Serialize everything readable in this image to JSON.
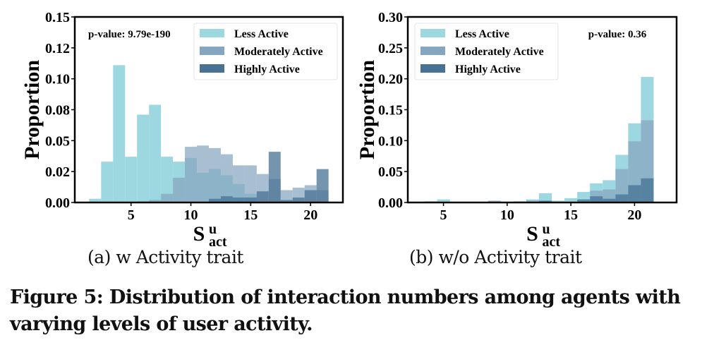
{
  "colors": {
    "less": "#9dd7e0",
    "moderate": "#86a5bf",
    "highly": "#477293"
  },
  "caption": {
    "sub_a": "(a) w Activity trait",
    "sub_b": "(b) w/o Activity trait",
    "figure": "Figure 5: Distribution of interaction numbers among agents with varying levels of user activity."
  },
  "chart_data": [
    {
      "type": "bar",
      "subtype": "overlaid-histogram",
      "id": "a",
      "title": "(a) w Activity trait",
      "xlabel": "S",
      "xlabel_sup": "u",
      "xlabel_sub": "act",
      "ylabel": "Proportion",
      "xlim": [
        0.3,
        22.7
      ],
      "ylim": [
        0,
        0.15
      ],
      "xticks": [
        5,
        10,
        15,
        20
      ],
      "yticks": [
        0,
        0.025,
        0.05,
        0.075,
        0.1,
        0.125,
        0.15
      ],
      "ytick_labels": [
        "0.00",
        "0.02",
        "0.05",
        "0.08",
        "0.10",
        "0.12",
        "0.15"
      ],
      "annotation": "p-value: 9.79e-190",
      "annotation_position": "top-left",
      "legend_position": "top-right",
      "grid": false,
      "bins": [
        2,
        3,
        4,
        5,
        6,
        7,
        8,
        9,
        10,
        11,
        12,
        13,
        14,
        15,
        16,
        17,
        18,
        19,
        20,
        21
      ],
      "series": [
        {
          "name": "Less Active",
          "key": "less",
          "values": [
            0.003,
            0.033,
            0.111,
            0.037,
            0.071,
            0.079,
            0.037,
            0.033,
            0.036,
            0.024,
            0.027,
            0.022,
            0.015,
            0.007,
            0,
            0,
            0,
            0,
            0,
            0
          ]
        },
        {
          "name": "Moderately Active",
          "key": "moderate",
          "values": [
            0,
            0,
            0,
            0,
            0.001,
            0.002,
            0.007,
            0.02,
            0.045,
            0.046,
            0.044,
            0.039,
            0.03,
            0.03,
            0.023,
            0.019,
            0.01,
            0.012,
            0.014,
            0.01
          ]
        },
        {
          "name": "Highly Active",
          "key": "highly",
          "values": [
            0,
            0,
            0,
            0,
            0,
            0,
            0,
            0,
            0,
            0,
            0.003,
            0.005,
            0.004,
            0.004,
            0.009,
            0.041,
            0.002,
            0.004,
            0.01,
            0.027
          ]
        }
      ]
    },
    {
      "type": "bar",
      "subtype": "overlaid-histogram",
      "id": "b",
      "title": "(b) w/o Activity trait",
      "xlabel": "S",
      "xlabel_sup": "u",
      "xlabel_sub": "act",
      "ylabel": "Proportion",
      "xlim": [
        2.2,
        23.3
      ],
      "ylim": [
        0,
        0.3
      ],
      "xticks": [
        5,
        10,
        15,
        20
      ],
      "yticks": [
        0,
        0.05,
        0.1,
        0.15,
        0.2,
        0.25,
        0.3
      ],
      "ytick_labels": [
        "0.00",
        "0.05",
        "0.10",
        "0.15",
        "0.20",
        "0.25",
        "0.30"
      ],
      "annotation": "p-value: 0.36",
      "annotation_position": "top-right",
      "legend_position": "top-left",
      "grid": false,
      "bins": [
        4,
        5,
        6,
        7,
        8,
        9,
        10,
        11,
        12,
        13,
        14,
        15,
        16,
        17,
        18,
        19,
        20,
        21
      ],
      "series": [
        {
          "name": "Less Active",
          "key": "less",
          "values": [
            0.002,
            0.005,
            0,
            0,
            0,
            0,
            0,
            0.002,
            0.005,
            0.015,
            0.003,
            0.007,
            0.017,
            0.031,
            0.036,
            0.077,
            0.128,
            0.203
          ]
        },
        {
          "name": "Moderately Active",
          "key": "moderate",
          "values": [
            0,
            0,
            0,
            0,
            0,
            0.003,
            0,
            0,
            0.003,
            0,
            0,
            0,
            0,
            0.019,
            0.021,
            0.054,
            0.099,
            0.133
          ]
        },
        {
          "name": "Highly Active",
          "key": "highly",
          "values": [
            0,
            0,
            0,
            0,
            0,
            0,
            0,
            0,
            0,
            0.003,
            0,
            0,
            0.005,
            0.01,
            0.006,
            0.013,
            0.028,
            0.039
          ]
        }
      ]
    }
  ]
}
